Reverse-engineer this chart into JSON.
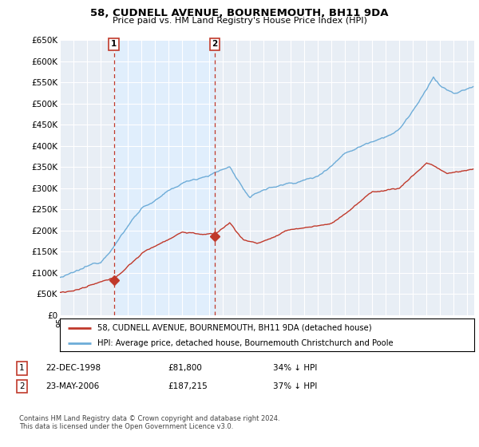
{
  "title": "58, CUDNELL AVENUE, BOURNEMOUTH, BH11 9DA",
  "subtitle": "Price paid vs. HM Land Registry's House Price Index (HPI)",
  "ylabel_ticks": [
    "£0",
    "£50K",
    "£100K",
    "£150K",
    "£200K",
    "£250K",
    "£300K",
    "£350K",
    "£400K",
    "£450K",
    "£500K",
    "£550K",
    "£600K",
    "£650K"
  ],
  "ytick_values": [
    0,
    50000,
    100000,
    150000,
    200000,
    250000,
    300000,
    350000,
    400000,
    450000,
    500000,
    550000,
    600000,
    650000
  ],
  "sale1_date": 1998.97,
  "sale1_price": 81800,
  "sale1_label": "1",
  "sale2_date": 2006.39,
  "sale2_price": 187215,
  "sale2_label": "2",
  "hpi_line_color": "#6dacd8",
  "price_line_color": "#c0392b",
  "vline_color": "#c0392b",
  "shade_color": "#ddeeff",
  "background_color": "#e8eef5",
  "grid_color": "#ffffff",
  "legend_entry1": "58, CUDNELL AVENUE, BOURNEMOUTH, BH11 9DA (detached house)",
  "legend_entry2": "HPI: Average price, detached house, Bournemouth Christchurch and Poole",
  "table_row1": [
    "1",
    "22-DEC-1998",
    "£81,800",
    "34% ↓ HPI"
  ],
  "table_row2": [
    "2",
    "23-MAY-2006",
    "£187,215",
    "37% ↓ HPI"
  ],
  "footnote": "Contains HM Land Registry data © Crown copyright and database right 2024.\nThis data is licensed under the Open Government Licence v3.0.",
  "xmin": 1995.0,
  "xmax": 2025.5,
  "ymin": 0,
  "ymax": 650000
}
